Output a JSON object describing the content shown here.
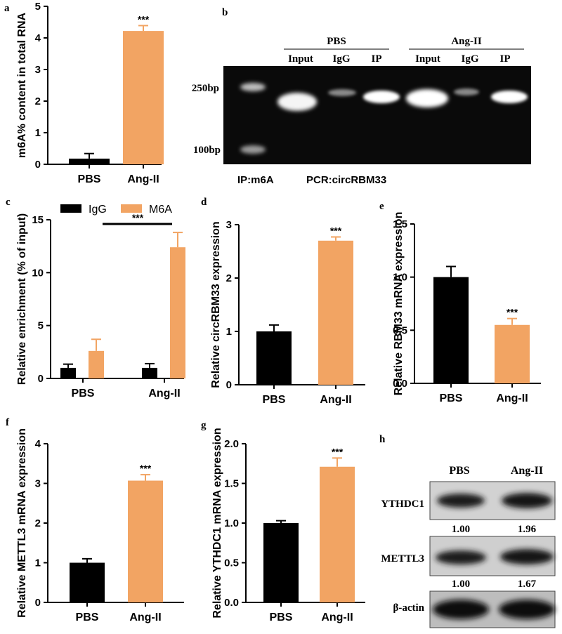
{
  "colors": {
    "black": "#000000",
    "orange": "#F2A463",
    "gel_bg": "#0a0a0a"
  },
  "panels": {
    "a": "a",
    "b": "b",
    "c": "c",
    "d": "d",
    "e": "e",
    "f": "f",
    "g": "g",
    "h": "h"
  },
  "chart_data": [
    {
      "id": "a",
      "type": "bar",
      "categories": [
        "PBS",
        "Ang-II"
      ],
      "values": [
        0.18,
        4.22
      ],
      "errors": [
        0.16,
        0.17
      ],
      "colors": [
        "#000000",
        "#F2A463"
      ],
      "ylabel": "m6A% content in total RNA",
      "ylim": [
        0,
        5
      ],
      "yticks": [
        "0",
        "1",
        "2",
        "3",
        "4",
        "5"
      ],
      "significance": [
        "",
        "***"
      ]
    },
    {
      "id": "c",
      "type": "bar",
      "categories": [
        "PBS",
        "Ang-II"
      ],
      "series": [
        {
          "name": "IgG",
          "values": [
            1.0,
            1.0
          ],
          "errors": [
            0.35,
            0.4
          ],
          "color": "#000000"
        },
        {
          "name": "M6A",
          "values": [
            2.6,
            12.4
          ],
          "errors": [
            1.1,
            1.4
          ],
          "color": "#F2A463"
        }
      ],
      "ylabel": "Relative enrichment (% of input)",
      "ylim": [
        0,
        15
      ],
      "yticks": [
        "0",
        "5",
        "10",
        "15"
      ],
      "significance": "***"
    },
    {
      "id": "d",
      "type": "bar",
      "categories": [
        "PBS",
        "Ang-II"
      ],
      "values": [
        1.0,
        2.7
      ],
      "errors": [
        0.12,
        0.07
      ],
      "colors": [
        "#000000",
        "#F2A463"
      ],
      "ylabel": "Relative circRBM33 expression",
      "ylim": [
        0,
        3
      ],
      "yticks": [
        "0",
        "1",
        "2",
        "3"
      ],
      "significance": [
        "",
        "***"
      ]
    },
    {
      "id": "e",
      "type": "bar",
      "categories": [
        "PBS",
        "Ang-II"
      ],
      "values": [
        1.0,
        0.55
      ],
      "errors": [
        0.1,
        0.06
      ],
      "colors": [
        "#000000",
        "#F2A463"
      ],
      "ylabel": "Relative RBM33 mRNA expression",
      "ylim": [
        0,
        1.5
      ],
      "yticks": [
        "0.0",
        "0.5",
        "1.0",
        "1.5"
      ],
      "significance": [
        "",
        "***"
      ]
    },
    {
      "id": "f",
      "type": "bar",
      "categories": [
        "PBS",
        "Ang-II"
      ],
      "values": [
        1.0,
        3.07
      ],
      "errors": [
        0.1,
        0.15
      ],
      "colors": [
        "#000000",
        "#F2A463"
      ],
      "ylabel": "Relative METTL3 mRNA expression",
      "ylim": [
        0,
        4
      ],
      "yticks": [
        "0",
        "1",
        "2",
        "3",
        "4"
      ],
      "significance": [
        "",
        "***"
      ]
    },
    {
      "id": "g",
      "type": "bar",
      "categories": [
        "PBS",
        "Ang-II"
      ],
      "values": [
        1.0,
        1.71
      ],
      "errors": [
        0.03,
        0.11
      ],
      "colors": [
        "#000000",
        "#F2A463"
      ],
      "ylabel": "Relative YTHDC1 mRNA expression",
      "ylim": [
        0,
        2
      ],
      "yticks": [
        "0.0",
        "0.5",
        "1.0",
        "1.5",
        "2.0"
      ],
      "significance": [
        "",
        "***"
      ]
    }
  ],
  "gel": {
    "group1": "PBS",
    "group2": "Ang-II",
    "lanes": [
      "Input",
      "IgG",
      "IP",
      "Input",
      "IgG",
      "IP"
    ],
    "marker_high": "250bp",
    "marker_low": "100bp",
    "ip_label": "IP:m6A",
    "pcr_label": "PCR:circRBM33"
  },
  "western": {
    "columns": [
      "PBS",
      "Ang-II"
    ],
    "blots": [
      {
        "label": "YTHDC1",
        "values": [
          "1.00",
          "1.96"
        ]
      },
      {
        "label": "METTL3",
        "values": [
          "1.00",
          "1.67"
        ]
      },
      {
        "label": "β-actin",
        "values": []
      }
    ]
  }
}
